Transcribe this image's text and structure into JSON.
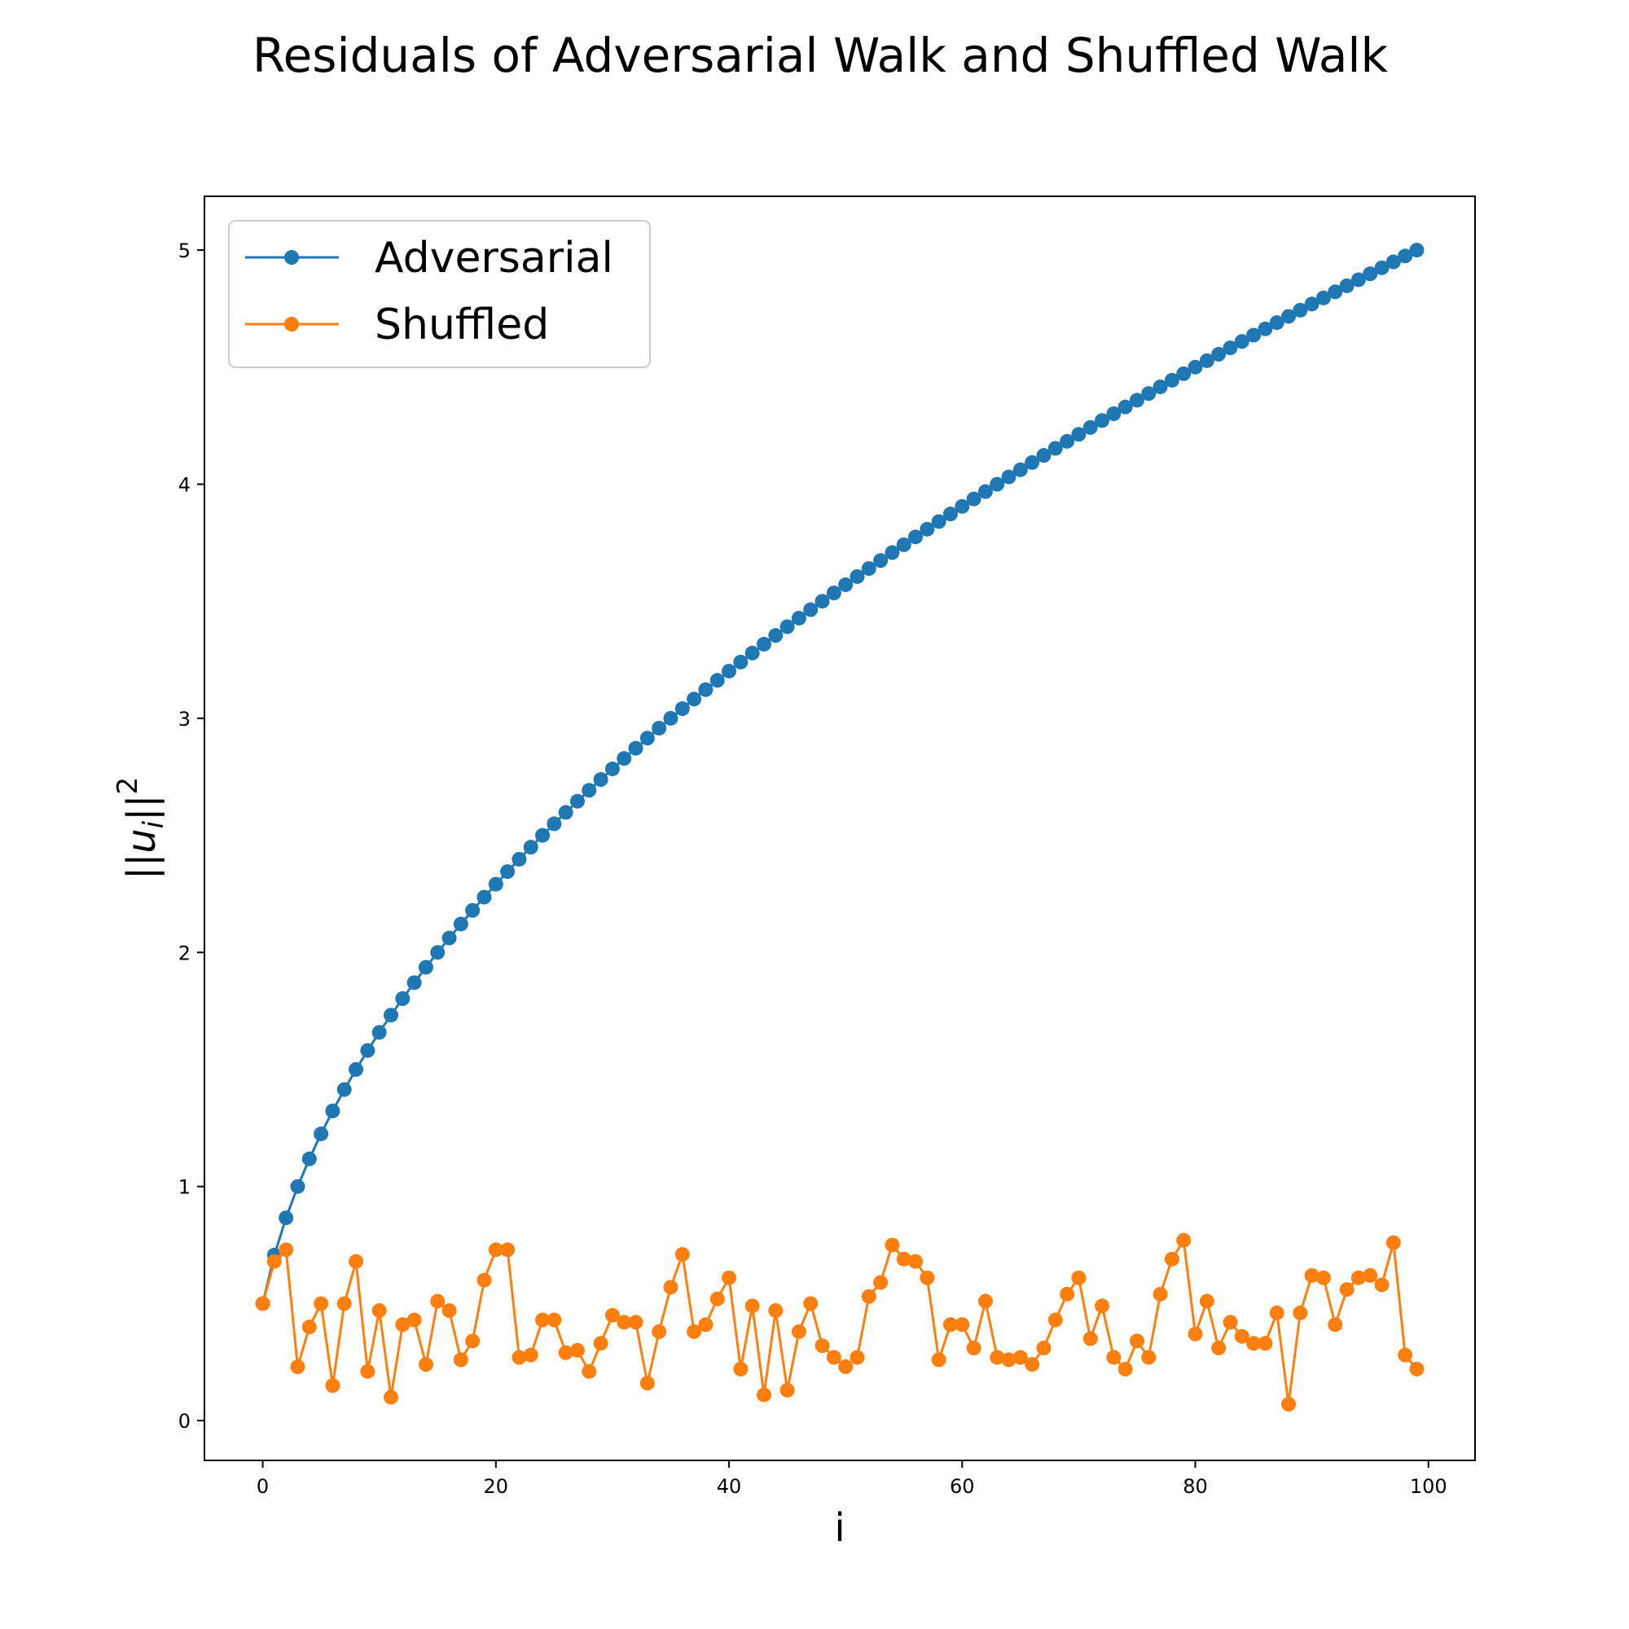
{
  "chart_data": {
    "type": "line",
    "title": "Residuals of Adversarial Walk and Shuffled Walk",
    "xlabel": "i",
    "ylabel_base": "||u",
    "ylabel_sub": "i",
    "ylabel_tail": "||",
    "ylabel_sup": "2",
    "xlim": [
      -5,
      104
    ],
    "ylim": [
      -0.17,
      5.23
    ],
    "xticks": [
      0,
      20,
      40,
      60,
      80,
      100
    ],
    "yticks": [
      0,
      1,
      2,
      3,
      4,
      5
    ],
    "grid": false,
    "legend_position": "upper-left",
    "series": [
      {
        "name": "Adversarial",
        "color": "#1f77b4",
        "formula": "sqrt((i+1)/4)",
        "x_start": 0,
        "x_end": 99
      },
      {
        "name": "Shuffled",
        "color": "#ff7f0e",
        "values": [
          0.5,
          0.68,
          0.73,
          0.23,
          0.4,
          0.5,
          0.15,
          0.5,
          0.68,
          0.21,
          0.47,
          0.1,
          0.41,
          0.43,
          0.24,
          0.51,
          0.47,
          0.26,
          0.34,
          0.6,
          0.73,
          0.73,
          0.27,
          0.28,
          0.43,
          0.43,
          0.29,
          0.3,
          0.21,
          0.33,
          0.45,
          0.42,
          0.42,
          0.16,
          0.38,
          0.57,
          0.71,
          0.38,
          0.41,
          0.52,
          0.61,
          0.22,
          0.49,
          0.11,
          0.47,
          0.13,
          0.38,
          0.5,
          0.32,
          0.27,
          0.23,
          0.27,
          0.53,
          0.59,
          0.75,
          0.69,
          0.68,
          0.61,
          0.26,
          0.41,
          0.41,
          0.31,
          0.51,
          0.27,
          0.26,
          0.27,
          0.24,
          0.31,
          0.43,
          0.54,
          0.61,
          0.35,
          0.49,
          0.27,
          0.22,
          0.34,
          0.27,
          0.54,
          0.69,
          0.77,
          0.37,
          0.51,
          0.31,
          0.42,
          0.36,
          0.33,
          0.33,
          0.46,
          0.07,
          0.46,
          0.62,
          0.61,
          0.41,
          0.56,
          0.61,
          0.62,
          0.58,
          0.76,
          0.28,
          0.22
        ]
      }
    ]
  }
}
